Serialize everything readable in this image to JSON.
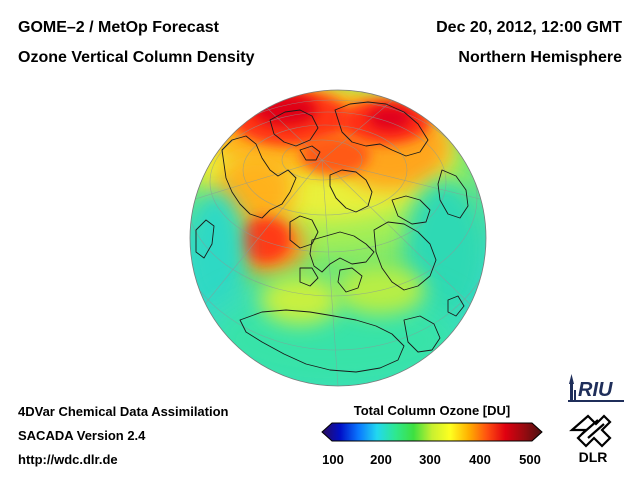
{
  "header": {
    "title_left_1": "GOME–2 / MetOp Forecast",
    "title_left_2": "Ozone Vertical Column Density",
    "title_right_1": "Dec 20, 2012, 12:00 GMT",
    "title_right_2": "Northern Hemisphere"
  },
  "footer": {
    "line1": "4DVar Chemical Data Assimilation",
    "line2": "SACADA Version 2.4",
    "line3": "http://wdc.dlr.de"
  },
  "colorbar": {
    "title": "Total Column Ozone [DU]",
    "min": 100,
    "max": 500,
    "ticks": [
      "100",
      "200",
      "300",
      "400",
      "500"
    ],
    "stops": [
      "#2a0a5a",
      "#0010c8",
      "#0a78ff",
      "#22d8f0",
      "#2ee890",
      "#3ee040",
      "#c8f030",
      "#ffff20",
      "#ffb000",
      "#ff5010",
      "#e00010",
      "#9a0a10",
      "#4a1010"
    ]
  },
  "logos": {
    "riu": "RIU",
    "dlr": "DLR"
  },
  "map": {
    "projection": "orthographic",
    "center": "Northern Hemisphere",
    "colors": {
      "ocean_base": "#3cd9c9",
      "low": "#39e79c",
      "mid": "#9ff062",
      "high": "#ffd028",
      "very_high": "#ff3b16",
      "extreme": "#e4001a"
    }
  }
}
